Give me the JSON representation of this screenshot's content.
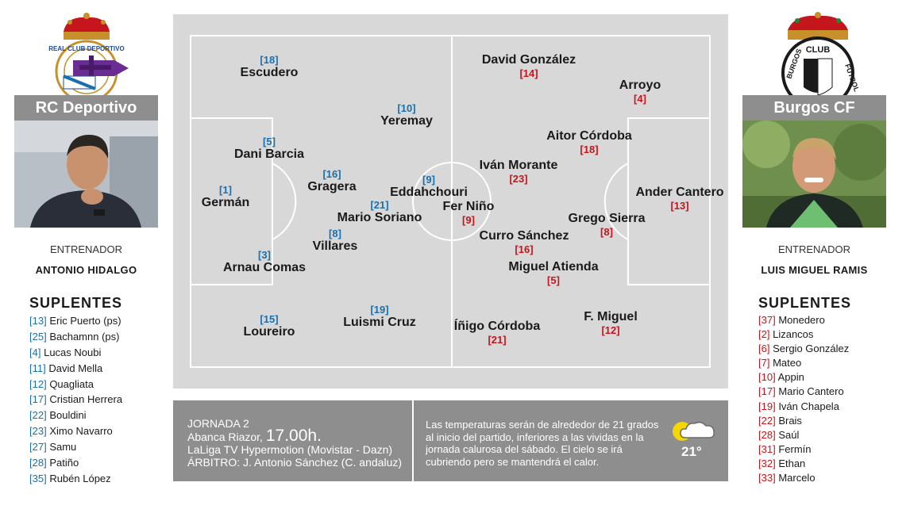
{
  "home": {
    "team": "RC Deportivo",
    "crest_text": "REAL CLUB DEPORTIVO",
    "coach_label": "ENTRENADOR",
    "coach": "ANTONIO HIDALGO",
    "subs_title": "SUPLENTES",
    "subs": [
      {
        "num": "[13]",
        "name": "Eric Puerto (ps)"
      },
      {
        "num": "[25]",
        "name": "Bachamnn (ps)"
      },
      {
        "num": "[4]",
        "name": "Lucas Noubi"
      },
      {
        "num": "[11]",
        "name": "David Mella"
      },
      {
        "num": "[12]",
        "name": "Quagliata"
      },
      {
        "num": "[17]",
        "name": "Cristian Herrera"
      },
      {
        "num": "[22]",
        "name": "Bouldini"
      },
      {
        "num": "[23]",
        "name": "Ximo Navarro"
      },
      {
        "num": "[27]",
        "name": "Samu"
      },
      {
        "num": "[28]",
        "name": "Patiño"
      },
      {
        "num": "[35]",
        "name": "Rubén López"
      }
    ],
    "players": [
      {
        "num": "[18]",
        "name": "Escudero"
      },
      {
        "num": "[10]",
        "name": "Yeremay"
      },
      {
        "num": "[5]",
        "name": "Dani Barcia"
      },
      {
        "num": "[16]",
        "name": "Gragera"
      },
      {
        "num": "[1]",
        "name": "Germán"
      },
      {
        "num": "[9]",
        "name": "Eddahchouri"
      },
      {
        "num": "[21]",
        "name": "Mario Soriano"
      },
      {
        "num": "[8]",
        "name": "Villares"
      },
      {
        "num": "[3]",
        "name": "Arnau Comas"
      },
      {
        "num": "[15]",
        "name": "Loureiro"
      },
      {
        "num": "[19]",
        "name": "Luismi Cruz"
      }
    ]
  },
  "away": {
    "team": "Burgos CF",
    "crest_text_1": "CLUB",
    "crest_text_2": "BURGOS",
    "crest_text_3": "FUTBOL",
    "coach_label": "ENTRENADOR",
    "coach": "LUIS MIGUEL RAMIS",
    "subs_title": "SUPLENTES",
    "subs": [
      {
        "num": "[37]",
        "name": "Monedero"
      },
      {
        "num": "[2]",
        "name": "Lizancos"
      },
      {
        "num": "[6]",
        "name": "Sergio González"
      },
      {
        "num": "[7]",
        "name": "Mateo"
      },
      {
        "num": "[10]",
        "name": "Appin"
      },
      {
        "num": "[17]",
        "name": "Mario Cantero"
      },
      {
        "num": "[19]",
        "name": "Iván Chapela"
      },
      {
        "num": "[22]",
        "name": "Brais"
      },
      {
        "num": "[28]",
        "name": "Saúl"
      },
      {
        "num": "[31]",
        "name": "Fermín"
      },
      {
        "num": "[32]",
        "name": "Ethan"
      },
      {
        "num": "[33]",
        "name": "Marcelo"
      }
    ],
    "players": [
      {
        "num": "[14]",
        "name": "David González"
      },
      {
        "num": "[4]",
        "name": "Arroyo"
      },
      {
        "num": "[18]",
        "name": "Aitor Córdoba"
      },
      {
        "num": "[23]",
        "name": "Iván Morante"
      },
      {
        "num": "[13]",
        "name": "Ander Cantero"
      },
      {
        "num": "[9]",
        "name": "Fer Niño"
      },
      {
        "num": "[8]",
        "name": "Grego Sierra"
      },
      {
        "num": "[16]",
        "name": "Curro Sánchez"
      },
      {
        "num": "[5]",
        "name": "Miguel Atienda"
      },
      {
        "num": "[21]",
        "name": "Íñigo Córdoba"
      },
      {
        "num": "[12]",
        "name": "F. Miguel"
      }
    ]
  },
  "match": {
    "jornada": "JORNADA 2",
    "stadium": "Abanca Riazor,",
    "time": "17.00h.",
    "tv": "LaLiga TV Hypermotion (Movistar - Dazn)",
    "referee": "ÁRBITRO: J. Antonio Sánchez (C. andaluz)"
  },
  "weather": {
    "text": "Las temperaturas serán de alrededor de 21 grados al inicio del partido, inferiores a las vividas en la jornada calurosa del sábado. El cielo se irá cubriendo pero se mantendrá el calor.",
    "temp": "21°",
    "icon": "sun-cloud-icon"
  },
  "colors": {
    "home_accent": "#1a6faf",
    "away_accent": "#c4161c",
    "panel_grey": "#8e8e8e",
    "pitch_grey": "#d8d8d8"
  }
}
